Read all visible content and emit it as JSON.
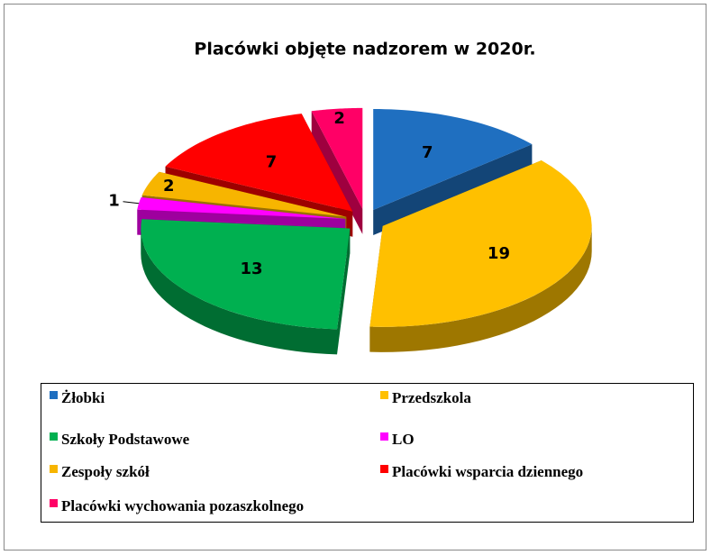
{
  "chart_data": {
    "type": "pie3d",
    "title": "Placówki objęte nadzorem w 2020r.",
    "categories": [
      "Żłobki",
      "Przedszkola",
      "Szkoły Podstawowe",
      "LO",
      "Zespoły szkół",
      "Placówki wsparcia dziennego",
      "Placówki wychowania pozaszkolnego"
    ],
    "values": [
      7,
      19,
      13,
      1,
      2,
      7,
      2
    ],
    "colors": [
      "#1f6fc0",
      "#ffc000",
      "#00b050",
      "#ff00ff",
      "#f7b500",
      "#ff0000",
      "#ff0066"
    ],
    "legend": "bottom"
  }
}
